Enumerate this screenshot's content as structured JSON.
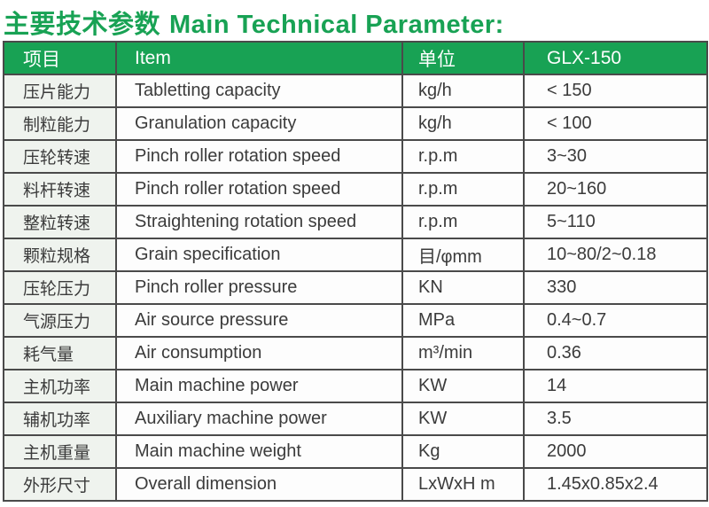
{
  "title": {
    "zh": "主要技术参数",
    "en": "Main Technical Parameter:"
  },
  "colors": {
    "accent_green": "#18a254",
    "header_text": "#ffffff",
    "body_text": "#3b3b3b",
    "first_column_bg": "#eff3ee",
    "cell_bg": "#fdfdfd",
    "border": "#4a4a4a"
  },
  "table": {
    "headers": [
      "项目",
      "Item",
      "单位",
      "GLX-150"
    ],
    "rows": [
      {
        "zh": "压片能力",
        "en": "Tabletting capacity",
        "unit": "kg/h",
        "value": "< 150"
      },
      {
        "zh": "制粒能力",
        "en": "Granulation capacity",
        "unit": "kg/h",
        "value": "< 100"
      },
      {
        "zh": "压轮转速",
        "en": "Pinch roller rotation speed",
        "unit": "r.p.m",
        "value": "3~30"
      },
      {
        "zh": "料杆转速",
        "en": "Pinch roller rotation speed",
        "unit": "r.p.m",
        "value": "20~160"
      },
      {
        "zh": "整粒转速",
        "en": "Straightening rotation speed",
        "unit": "r.p.m",
        "value": "5~110"
      },
      {
        "zh": "颗粒规格",
        "en": "Grain specification",
        "unit": "目/φmm",
        "value": "10~80/2~0.18"
      },
      {
        "zh": "压轮压力",
        "en": "Pinch roller pressure",
        "unit": "KN",
        "value": "330"
      },
      {
        "zh": "气源压力",
        "en": "Air source pressure",
        "unit": "MPa",
        "value": "0.4~0.7"
      },
      {
        "zh": "耗气量",
        "en": "Air consumption",
        "unit": "m³/min",
        "value": "0.36"
      },
      {
        "zh": "主机功率",
        "en": "Main machine power",
        "unit": "KW",
        "value": "14"
      },
      {
        "zh": "辅机功率",
        "en": "Auxiliary machine power",
        "unit": "KW",
        "value": "3.5"
      },
      {
        "zh": "主机重量",
        "en": "Main machine weight",
        "unit": "Kg",
        "value": "2000"
      },
      {
        "zh": "外形尺寸",
        "en": "Overall dimension",
        "unit": "LxWxH m",
        "value": "1.45x0.85x2.4"
      }
    ]
  }
}
